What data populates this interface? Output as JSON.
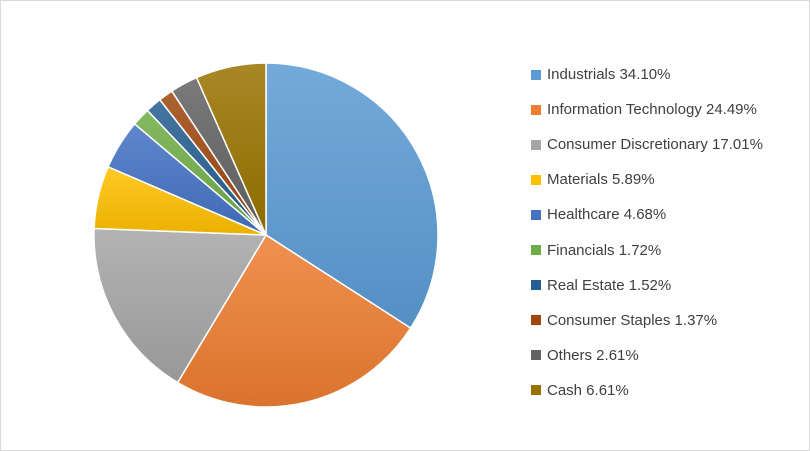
{
  "chart_data": {
    "type": "pie",
    "title": "",
    "legend_position": "right",
    "slices": [
      {
        "label": "Industrials 34.10%",
        "value": 34.1,
        "color": "#5b9bd5"
      },
      {
        "label": "Information Technology 24.49%",
        "value": 24.49,
        "color": "#ed7d31"
      },
      {
        "label": "Consumer Discretionary 17.01%",
        "value": 17.01,
        "color": "#a5a5a5"
      },
      {
        "label": "Materials 5.89%",
        "value": 5.89,
        "color": "#ffc000"
      },
      {
        "label": "Healthcare 4.68%",
        "value": 4.68,
        "color": "#4472c4"
      },
      {
        "label": "Financials 1.72%",
        "value": 1.72,
        "color": "#70ad47"
      },
      {
        "label": "Real Estate 1.52%",
        "value": 1.52,
        "color": "#255e91"
      },
      {
        "label": "Consumer Staples 1.37%",
        "value": 1.37,
        "color": "#9e480e"
      },
      {
        "label": "Others 2.61%",
        "value": 2.61,
        "color": "#636363"
      },
      {
        "label": "Cash 6.61%",
        "value": 6.61,
        "color": "#997300"
      }
    ]
  }
}
